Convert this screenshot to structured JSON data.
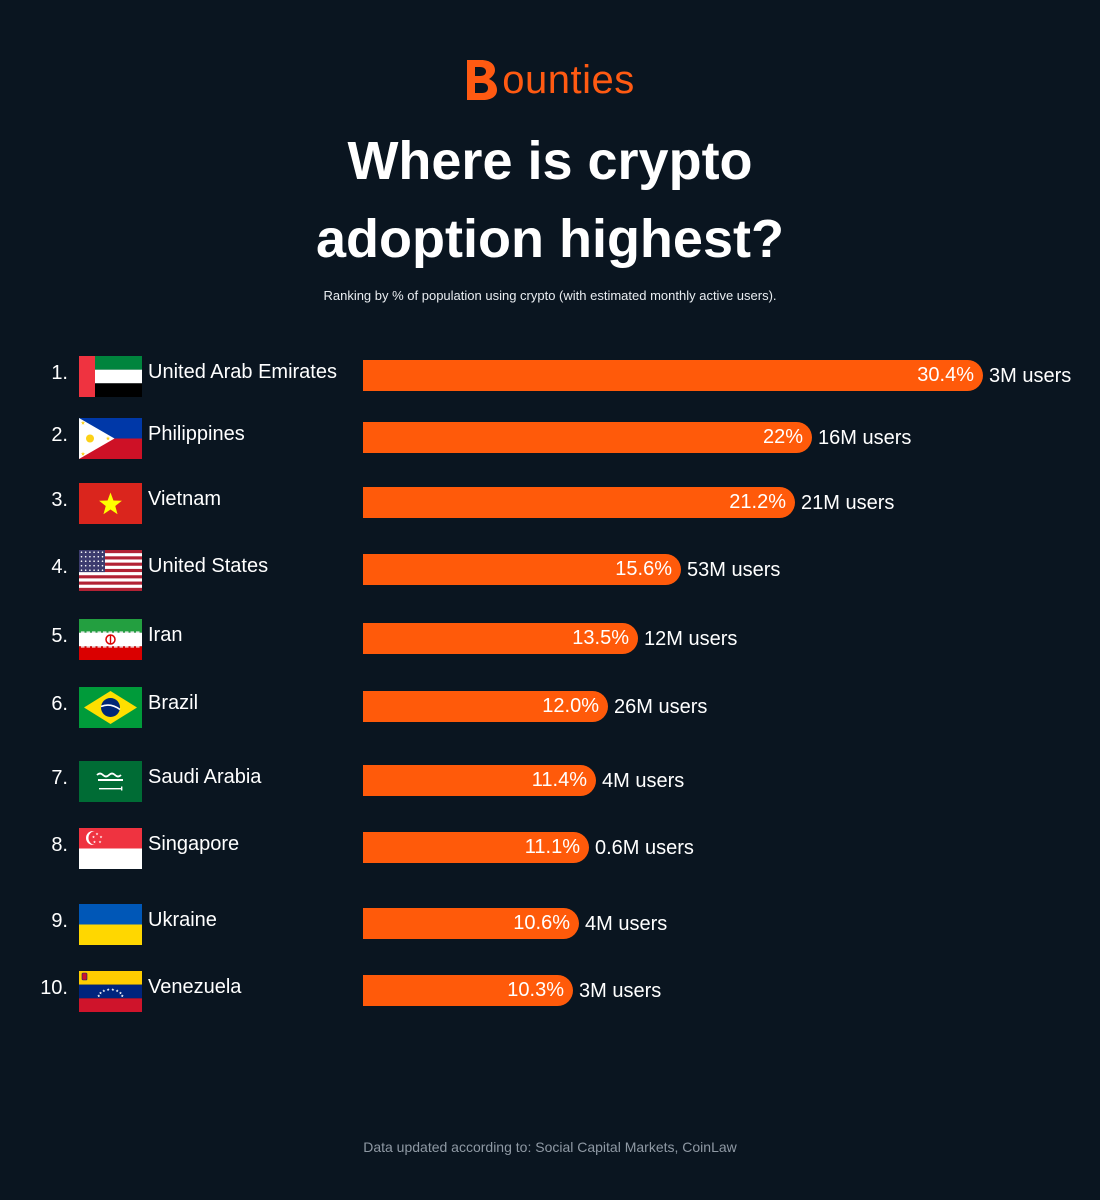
{
  "brand": {
    "name": "ounties",
    "accent": "#ff5a0a",
    "background": "#0a1520"
  },
  "title_line1": "Where is crypto",
  "title_line2": "adoption highest?",
  "subtitle": "Ranking by % of population using crypto (with estimated monthly active users).",
  "footer": "Data updated according to: Social Capital Markets, CoinLaw",
  "chart_data": {
    "type": "bar",
    "orientation": "horizontal",
    "title": "Where is crypto adoption highest?",
    "subtitle": "Ranking by % of population using crypto (with estimated monthly active users).",
    "xlabel": "",
    "ylabel": "",
    "xlim": [
      0,
      30.4
    ],
    "grid": false,
    "legend": "none",
    "rows": [
      {
        "rank": "1.",
        "country": "United Arab Emirates",
        "flag": "uae-flag-icon",
        "value": 30.4,
        "value_label": "30.4%",
        "users": "3M users"
      },
      {
        "rank": "2.",
        "country": "Philippines",
        "flag": "philippines-flag-icon",
        "value": 22,
        "value_label": "22%",
        "users": "16M users"
      },
      {
        "rank": "3.",
        "country": "Vietnam",
        "flag": "vietnam-flag-icon",
        "value": 21.2,
        "value_label": "21.2%",
        "users": "21M users"
      },
      {
        "rank": "4.",
        "country": "United States",
        "flag": "usa-flag-icon",
        "value": 15.6,
        "value_label": "15.6%",
        "users": "53M users"
      },
      {
        "rank": "5.",
        "country": "Iran",
        "flag": "iran-flag-icon",
        "value": 13.5,
        "value_label": "13.5%",
        "users": "12M users"
      },
      {
        "rank": "6.",
        "country": "Brazil",
        "flag": "brazil-flag-icon",
        "value": 12.0,
        "value_label": "12.0%",
        "users": "26M users"
      },
      {
        "rank": "7.",
        "country": "Saudi Arabia",
        "flag": "saudi-arabia-flag-icon",
        "value": 11.4,
        "value_label": "11.4%",
        "users": "4M users"
      },
      {
        "rank": "8.",
        "country": "Singapore",
        "flag": "singapore-flag-icon",
        "value": 11.1,
        "value_label": "11.1%",
        "users": "0.6M users"
      },
      {
        "rank": "9.",
        "country": "Ukraine",
        "flag": "ukraine-flag-icon",
        "value": 10.6,
        "value_label": "10.6%",
        "users": "4M users"
      },
      {
        "rank": "10.",
        "country": "Venezuela",
        "flag": "venezuela-flag-icon",
        "value": 10.3,
        "value_label": "10.3%",
        "users": "3M users"
      }
    ]
  }
}
